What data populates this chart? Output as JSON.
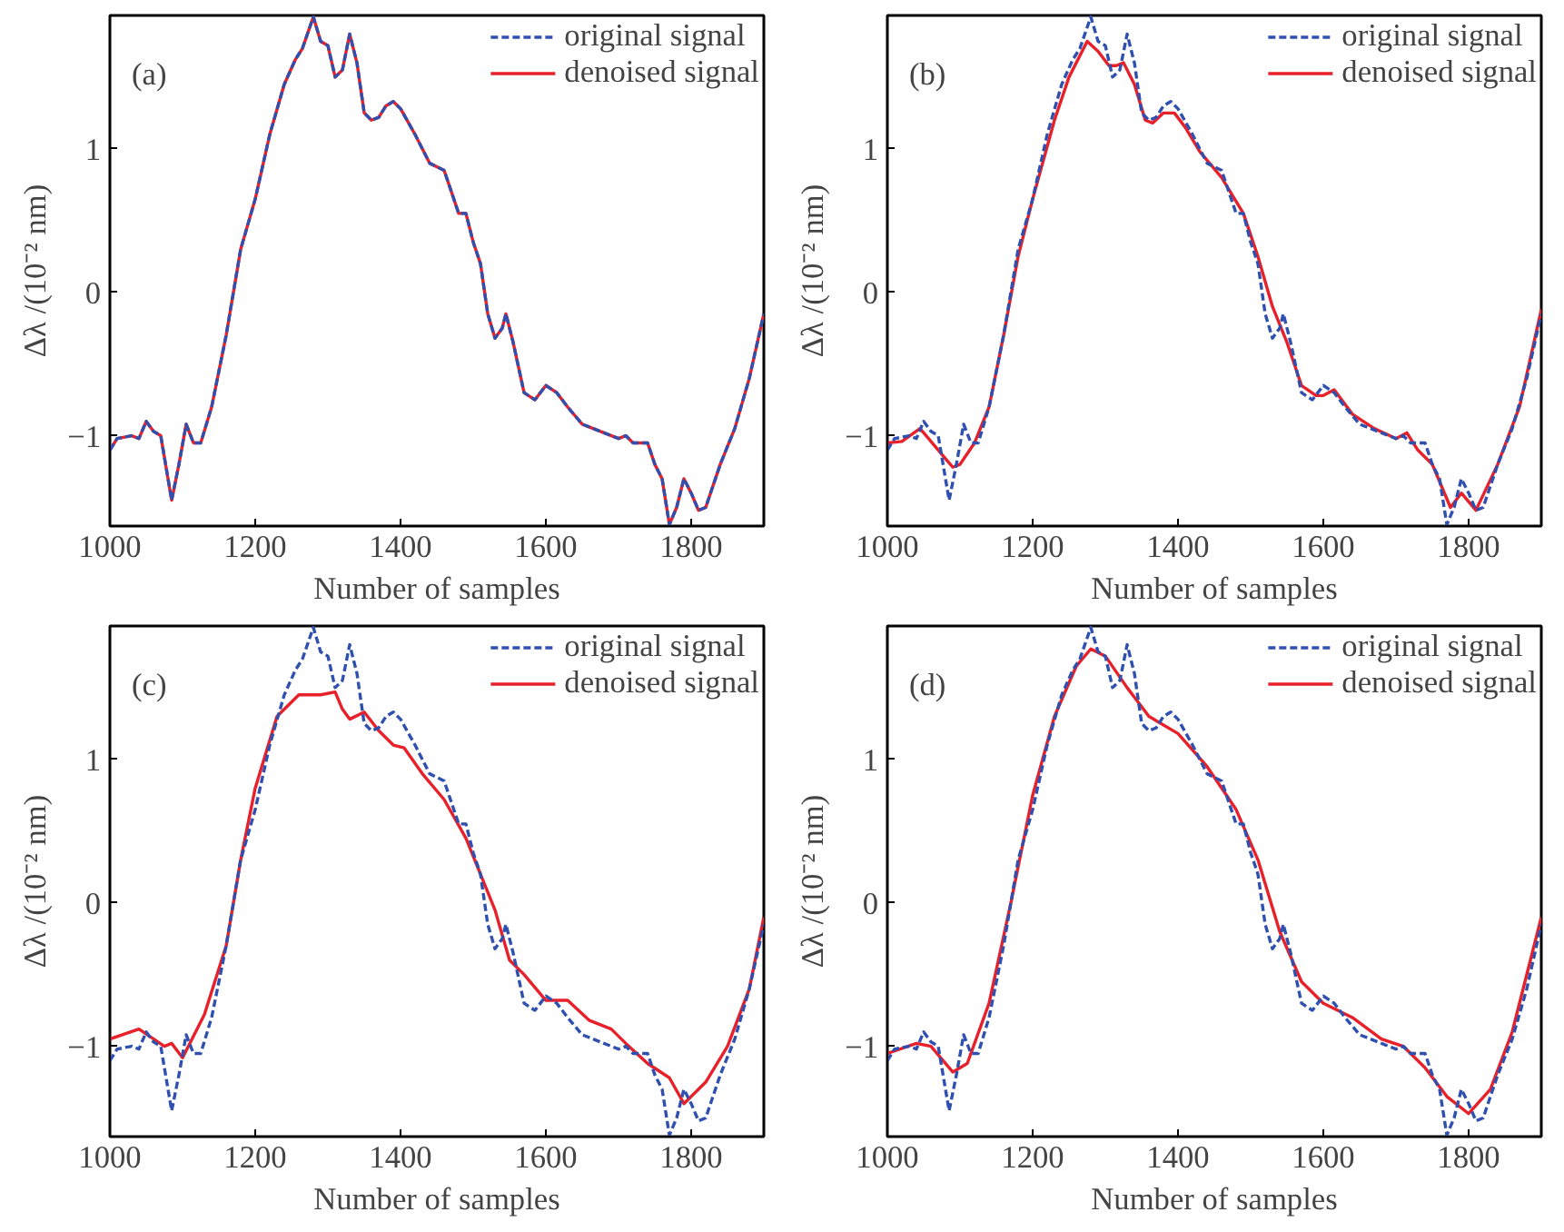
{
  "chart_data": [
    {
      "type": "line",
      "annotations": [
        "(a)"
      ],
      "xlabel": "Number of samples",
      "ylabel": "Δλ /(10⁻² nm)",
      "xlim": [
        1000,
        1900
      ],
      "ylim": [
        -1.63,
        1.93
      ],
      "xticks": [
        1000,
        1200,
        1400,
        1600,
        1800
      ],
      "yticks": [
        -1,
        0,
        1
      ],
      "grid": false,
      "legend": "top right",
      "marker": "none",
      "series": [
        {
          "name": "original signal",
          "color": "#3050b0",
          "line_style": "dashed",
          "x": [
            1000,
            1010,
            1030,
            1040,
            1050,
            1060,
            1070,
            1085,
            1095,
            1105,
            1115,
            1125,
            1140,
            1160,
            1180,
            1200,
            1220,
            1240,
            1255,
            1265,
            1280,
            1290,
            1300,
            1310,
            1320,
            1330,
            1340,
            1350,
            1360,
            1370,
            1380,
            1390,
            1400,
            1420,
            1440,
            1460,
            1480,
            1490,
            1500,
            1510,
            1520,
            1530,
            1540,
            1545,
            1555,
            1570,
            1585,
            1600,
            1615,
            1630,
            1650,
            1680,
            1700,
            1710,
            1720,
            1740,
            1750,
            1760,
            1770,
            1780,
            1790,
            1800,
            1810,
            1820,
            1840,
            1860,
            1880,
            1900
          ],
          "values": [
            -1.1,
            -1.02,
            -1.0,
            -1.02,
            -0.9,
            -0.97,
            -1.0,
            -1.45,
            -1.2,
            -0.92,
            -1.05,
            -1.05,
            -0.8,
            -0.3,
            0.3,
            0.65,
            1.1,
            1.45,
            1.62,
            1.7,
            1.92,
            1.75,
            1.72,
            1.5,
            1.55,
            1.8,
            1.6,
            1.25,
            1.2,
            1.22,
            1.3,
            1.33,
            1.28,
            1.1,
            0.9,
            0.85,
            0.55,
            0.55,
            0.35,
            0.2,
            -0.15,
            -0.32,
            -0.25,
            -0.15,
            -0.35,
            -0.7,
            -0.75,
            -0.65,
            -0.7,
            -0.8,
            -0.92,
            -0.98,
            -1.02,
            -1.0,
            -1.05,
            -1.05,
            -1.2,
            -1.3,
            -1.62,
            -1.5,
            -1.3,
            -1.4,
            -1.52,
            -1.5,
            -1.2,
            -0.95,
            -0.6,
            -0.15
          ]
        },
        {
          "name": "denoised signal",
          "color": "#e8202a",
          "line_style": "solid",
          "x": [
            1000,
            1010,
            1030,
            1040,
            1050,
            1060,
            1070,
            1085,
            1095,
            1105,
            1115,
            1125,
            1140,
            1160,
            1180,
            1200,
            1220,
            1240,
            1255,
            1265,
            1280,
            1290,
            1300,
            1310,
            1320,
            1330,
            1340,
            1350,
            1360,
            1370,
            1380,
            1390,
            1400,
            1420,
            1440,
            1460,
            1480,
            1490,
            1500,
            1510,
            1520,
            1530,
            1540,
            1545,
            1555,
            1570,
            1585,
            1600,
            1615,
            1630,
            1650,
            1680,
            1700,
            1710,
            1720,
            1740,
            1750,
            1760,
            1770,
            1780,
            1790,
            1800,
            1810,
            1820,
            1840,
            1860,
            1880,
            1900
          ],
          "values": [
            -1.1,
            -1.02,
            -1.0,
            -1.02,
            -0.9,
            -0.97,
            -1.0,
            -1.45,
            -1.2,
            -0.92,
            -1.05,
            -1.05,
            -0.8,
            -0.3,
            0.3,
            0.65,
            1.1,
            1.45,
            1.62,
            1.7,
            1.92,
            1.75,
            1.72,
            1.5,
            1.55,
            1.8,
            1.6,
            1.25,
            1.2,
            1.22,
            1.3,
            1.33,
            1.28,
            1.1,
            0.9,
            0.85,
            0.55,
            0.55,
            0.35,
            0.2,
            -0.15,
            -0.32,
            -0.25,
            -0.15,
            -0.35,
            -0.7,
            -0.75,
            -0.65,
            -0.7,
            -0.8,
            -0.92,
            -0.98,
            -1.02,
            -1.0,
            -1.05,
            -1.05,
            -1.2,
            -1.3,
            -1.62,
            -1.5,
            -1.3,
            -1.4,
            -1.52,
            -1.5,
            -1.2,
            -0.95,
            -0.6,
            -0.15
          ]
        }
      ]
    },
    {
      "type": "line",
      "annotations": [
        "(b)"
      ],
      "xlabel": "Number of samples",
      "ylabel": "Δλ /(10⁻² nm)",
      "xlim": [
        1000,
        1900
      ],
      "ylim": [
        -1.63,
        1.93
      ],
      "xticks": [
        1000,
        1200,
        1400,
        1600,
        1800
      ],
      "yticks": [
        -1,
        0,
        1
      ],
      "grid": false,
      "legend": "top right",
      "marker": "none",
      "series": [
        {
          "name": "original signal",
          "color": "#3050b0",
          "line_style": "dashed",
          "x": [
            1000,
            1010,
            1030,
            1040,
            1050,
            1060,
            1070,
            1085,
            1095,
            1105,
            1115,
            1125,
            1140,
            1160,
            1180,
            1200,
            1220,
            1240,
            1255,
            1265,
            1280,
            1290,
            1300,
            1310,
            1320,
            1330,
            1340,
            1350,
            1360,
            1370,
            1380,
            1390,
            1400,
            1420,
            1440,
            1460,
            1480,
            1490,
            1500,
            1510,
            1520,
            1530,
            1540,
            1545,
            1555,
            1570,
            1585,
            1600,
            1615,
            1630,
            1650,
            1680,
            1700,
            1710,
            1720,
            1740,
            1750,
            1760,
            1770,
            1780,
            1790,
            1800,
            1810,
            1820,
            1840,
            1860,
            1880,
            1900
          ],
          "values": [
            -1.1,
            -1.02,
            -1.0,
            -1.02,
            -0.9,
            -0.97,
            -1.0,
            -1.45,
            -1.2,
            -0.92,
            -1.05,
            -1.05,
            -0.8,
            -0.3,
            0.3,
            0.65,
            1.1,
            1.45,
            1.62,
            1.7,
            1.92,
            1.75,
            1.72,
            1.5,
            1.55,
            1.8,
            1.6,
            1.25,
            1.2,
            1.22,
            1.3,
            1.33,
            1.28,
            1.1,
            0.9,
            0.85,
            0.55,
            0.55,
            0.35,
            0.2,
            -0.15,
            -0.32,
            -0.25,
            -0.15,
            -0.35,
            -0.7,
            -0.75,
            -0.65,
            -0.7,
            -0.8,
            -0.92,
            -0.98,
            -1.02,
            -1.0,
            -1.05,
            -1.05,
            -1.2,
            -1.3,
            -1.62,
            -1.5,
            -1.3,
            -1.4,
            -1.52,
            -1.5,
            -1.2,
            -0.95,
            -0.6,
            -0.15
          ]
        },
        {
          "name": "denoised signal",
          "color": "#e8202a",
          "line_style": "solid",
          "x": [
            1000,
            1020,
            1045,
            1070,
            1090,
            1100,
            1120,
            1140,
            1160,
            1180,
            1200,
            1230,
            1250,
            1275,
            1290,
            1305,
            1315,
            1325,
            1340,
            1355,
            1365,
            1380,
            1395,
            1410,
            1430,
            1460,
            1490,
            1510,
            1530,
            1550,
            1570,
            1590,
            1600,
            1615,
            1640,
            1670,
            1700,
            1715,
            1730,
            1750,
            1775,
            1790,
            1810,
            1840,
            1870,
            1900
          ],
          "values": [
            -1.05,
            -1.04,
            -0.95,
            -1.1,
            -1.22,
            -1.2,
            -1.05,
            -0.8,
            -0.3,
            0.25,
            0.65,
            1.2,
            1.5,
            1.75,
            1.68,
            1.58,
            1.58,
            1.6,
            1.45,
            1.2,
            1.18,
            1.25,
            1.25,
            1.15,
            0.98,
            0.8,
            0.55,
            0.25,
            -0.1,
            -0.35,
            -0.65,
            -0.72,
            -0.72,
            -0.68,
            -0.85,
            -0.95,
            -1.02,
            -0.98,
            -1.1,
            -1.2,
            -1.5,
            -1.4,
            -1.52,
            -1.2,
            -0.8,
            -0.12
          ]
        }
      ]
    },
    {
      "type": "line",
      "annotations": [
        "(c)"
      ],
      "xlabel": "Number of samples",
      "ylabel": "Δλ /(10⁻² nm)",
      "xlim": [
        1000,
        1900
      ],
      "ylim": [
        -1.63,
        1.93
      ],
      "xticks": [
        1000,
        1200,
        1400,
        1600,
        1800
      ],
      "yticks": [
        -1,
        0,
        1
      ],
      "grid": false,
      "legend": "top right",
      "marker": "none",
      "series": [
        {
          "name": "original signal",
          "color": "#3050b0",
          "line_style": "dashed",
          "x": [
            1000,
            1010,
            1030,
            1040,
            1050,
            1060,
            1070,
            1085,
            1095,
            1105,
            1115,
            1125,
            1140,
            1160,
            1180,
            1200,
            1220,
            1240,
            1255,
            1265,
            1280,
            1290,
            1300,
            1310,
            1320,
            1330,
            1340,
            1350,
            1360,
            1370,
            1380,
            1390,
            1400,
            1420,
            1440,
            1460,
            1480,
            1490,
            1500,
            1510,
            1520,
            1530,
            1540,
            1545,
            1555,
            1570,
            1585,
            1600,
            1615,
            1630,
            1650,
            1680,
            1700,
            1710,
            1720,
            1740,
            1750,
            1760,
            1770,
            1780,
            1790,
            1800,
            1810,
            1820,
            1840,
            1860,
            1880,
            1900
          ],
          "values": [
            -1.1,
            -1.02,
            -1.0,
            -1.02,
            -0.9,
            -0.97,
            -1.0,
            -1.45,
            -1.2,
            -0.92,
            -1.05,
            -1.05,
            -0.8,
            -0.3,
            0.3,
            0.65,
            1.1,
            1.45,
            1.62,
            1.7,
            1.92,
            1.75,
            1.72,
            1.5,
            1.55,
            1.8,
            1.6,
            1.25,
            1.2,
            1.22,
            1.3,
            1.33,
            1.28,
            1.1,
            0.9,
            0.85,
            0.55,
            0.55,
            0.35,
            0.2,
            -0.15,
            -0.32,
            -0.25,
            -0.15,
            -0.35,
            -0.7,
            -0.75,
            -0.65,
            -0.7,
            -0.8,
            -0.92,
            -0.98,
            -1.02,
            -1.0,
            -1.05,
            -1.05,
            -1.2,
            -1.3,
            -1.62,
            -1.5,
            -1.3,
            -1.4,
            -1.52,
            -1.5,
            -1.2,
            -0.95,
            -0.6,
            -0.15
          ]
        },
        {
          "name": "denoised signal",
          "color": "#e8202a",
          "line_style": "solid",
          "x": [
            1000,
            1040,
            1075,
            1085,
            1100,
            1130,
            1160,
            1180,
            1200,
            1230,
            1260,
            1275,
            1290,
            1310,
            1320,
            1330,
            1350,
            1370,
            1390,
            1405,
            1430,
            1460,
            1490,
            1510,
            1530,
            1550,
            1570,
            1600,
            1630,
            1660,
            1690,
            1710,
            1740,
            1770,
            1790,
            1820,
            1850,
            1880,
            1900
          ],
          "values": [
            -0.95,
            -0.88,
            -1.0,
            -0.98,
            -1.08,
            -0.78,
            -0.3,
            0.3,
            0.8,
            1.3,
            1.45,
            1.45,
            1.45,
            1.47,
            1.35,
            1.28,
            1.33,
            1.2,
            1.1,
            1.08,
            0.9,
            0.72,
            0.45,
            0.2,
            -0.05,
            -0.4,
            -0.5,
            -0.68,
            -0.68,
            -0.82,
            -0.88,
            -0.98,
            -1.12,
            -1.22,
            -1.4,
            -1.25,
            -1.0,
            -0.6,
            -0.1
          ]
        }
      ]
    },
    {
      "type": "line",
      "annotations": [
        "(d)"
      ],
      "xlabel": "Number of samples",
      "ylabel": "Δλ /(10⁻² nm)",
      "xlim": [
        1000,
        1900
      ],
      "ylim": [
        -1.63,
        1.93
      ],
      "xticks": [
        1000,
        1200,
        1400,
        1600,
        1800
      ],
      "yticks": [
        -1,
        0,
        1
      ],
      "grid": false,
      "legend": "top right",
      "marker": "none",
      "series": [
        {
          "name": "original signal",
          "color": "#3050b0",
          "line_style": "dashed",
          "x": [
            1000,
            1010,
            1030,
            1040,
            1050,
            1060,
            1070,
            1085,
            1095,
            1105,
            1115,
            1125,
            1140,
            1160,
            1180,
            1200,
            1220,
            1240,
            1255,
            1265,
            1280,
            1290,
            1300,
            1310,
            1320,
            1330,
            1340,
            1350,
            1360,
            1370,
            1380,
            1390,
            1400,
            1420,
            1440,
            1460,
            1480,
            1490,
            1500,
            1510,
            1520,
            1530,
            1540,
            1545,
            1555,
            1570,
            1585,
            1600,
            1615,
            1630,
            1650,
            1680,
            1700,
            1710,
            1720,
            1740,
            1750,
            1760,
            1770,
            1780,
            1790,
            1800,
            1810,
            1820,
            1840,
            1860,
            1880,
            1900
          ],
          "values": [
            -1.1,
            -1.02,
            -1.0,
            -1.02,
            -0.9,
            -0.97,
            -1.0,
            -1.45,
            -1.2,
            -0.92,
            -1.05,
            -1.05,
            -0.8,
            -0.3,
            0.3,
            0.65,
            1.1,
            1.45,
            1.62,
            1.7,
            1.92,
            1.75,
            1.72,
            1.5,
            1.55,
            1.8,
            1.6,
            1.25,
            1.2,
            1.22,
            1.3,
            1.33,
            1.28,
            1.1,
            0.9,
            0.85,
            0.55,
            0.55,
            0.35,
            0.2,
            -0.15,
            -0.32,
            -0.25,
            -0.15,
            -0.35,
            -0.7,
            -0.75,
            -0.65,
            -0.7,
            -0.8,
            -0.92,
            -0.98,
            -1.02,
            -1.0,
            -1.05,
            -1.05,
            -1.2,
            -1.3,
            -1.62,
            -1.5,
            -1.3,
            -1.4,
            -1.52,
            -1.5,
            -1.2,
            -0.95,
            -0.6,
            -0.15
          ]
        },
        {
          "name": "denoised signal",
          "color": "#e8202a",
          "line_style": "solid",
          "x": [
            1000,
            1040,
            1060,
            1090,
            1110,
            1140,
            1170,
            1200,
            1230,
            1260,
            1280,
            1300,
            1330,
            1360,
            1400,
            1440,
            1480,
            1510,
            1540,
            1570,
            1600,
            1640,
            1680,
            1710,
            1740,
            1770,
            1800,
            1830,
            1860,
            1900
          ],
          "values": [
            -1.05,
            -0.98,
            -1.0,
            -1.18,
            -1.12,
            -0.7,
            0.0,
            0.75,
            1.3,
            1.65,
            1.77,
            1.72,
            1.5,
            1.3,
            1.18,
            0.95,
            0.65,
            0.3,
            -0.2,
            -0.55,
            -0.7,
            -0.8,
            -0.95,
            -1.0,
            -1.15,
            -1.35,
            -1.47,
            -1.3,
            -0.9,
            -0.1
          ]
        }
      ]
    }
  ]
}
